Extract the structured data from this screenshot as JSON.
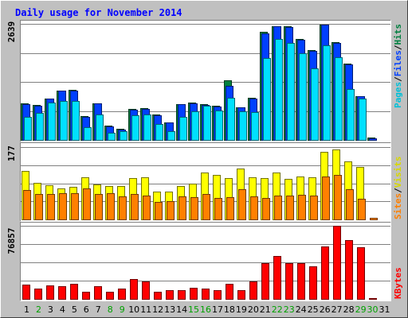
{
  "chart_data": {
    "type": "bar",
    "title": "Daily usage for November 2014",
    "days": [
      "1",
      "2",
      "3",
      "4",
      "5",
      "6",
      "7",
      "8",
      "9",
      "10",
      "11",
      "12",
      "13",
      "14",
      "15",
      "16",
      "17",
      "18",
      "19",
      "20",
      "21",
      "22",
      "23",
      "24",
      "25",
      "26",
      "27",
      "28",
      "29",
      "30",
      "31"
    ],
    "weekend_days": [
      2,
      8,
      9,
      15,
      16,
      22,
      23,
      29,
      30
    ],
    "panels": {
      "top": {
        "max_label": "2639",
        "ymax": 2639,
        "grid": true,
        "series": [
          {
            "name": "Hits",
            "color": "#008040",
            "values": [
              823,
              791,
              946,
              1124,
              1132,
              543,
              838,
              325,
              254,
              707,
              715,
              579,
              405,
              818,
              843,
              812,
              770,
              1356,
              749,
              954,
              2454,
              2592,
              2579,
              2290,
              2041,
              2626,
              2216,
              1732,
              999,
              50,
              0
            ]
          },
          {
            "name": "Files",
            "color": "#0040ff",
            "values": [
              811,
              779,
              934,
              1117,
              1124,
              531,
              826,
              314,
              243,
              695,
              703,
              567,
              393,
              806,
              831,
              800,
              758,
              1221,
              737,
              942,
              2429,
              2580,
              2567,
              2277,
              2029,
              2613,
              2203,
              1719,
              987,
              45,
              0
            ]
          },
          {
            "name": "Pages",
            "color": "#00e0ff",
            "values": [
              522,
              618,
              852,
              887,
              881,
              287,
              583,
              166,
              191,
              561,
              574,
              369,
              204,
              533,
              656,
              778,
              672,
              949,
              659,
              639,
              1855,
              2303,
              2214,
              1968,
              1627,
              2160,
              1873,
              1162,
              932,
              0,
              0
            ]
          }
        ]
      },
      "middle": {
        "max_label": "177",
        "ymax": 177,
        "grid": true,
        "series": [
          {
            "name": "Visits",
            "color": "#ffff00",
            "values": [
              119,
              89,
              84,
              76,
              80,
              103,
              86,
              81,
              81,
              102,
              103,
              69,
              69,
              81,
              87,
              114,
              109,
              101,
              124,
              103,
              102,
              114,
              100,
              105,
              104,
              166,
              171,
              142,
              128,
              0,
              0
            ]
          },
          {
            "name": "Sites",
            "color": "#ff8000",
            "values": [
              72,
              63,
              63,
              64,
              64,
              75,
              63,
              65,
              56,
              62,
              59,
              43,
              45,
              56,
              54,
              62,
              52,
              55,
              73,
              56,
              53,
              58,
              58,
              61,
              58,
              105,
              108,
              73,
              50,
              4,
              0
            ]
          }
        ]
      },
      "bottom": {
        "max_label": "76857",
        "ymax": 76857,
        "grid": true,
        "series": [
          {
            "name": "KBytes",
            "color": "#ff0000",
            "values": [
              14900,
              10500,
              14100,
              13500,
              16200,
              7500,
              13500,
              7500,
              10500,
              21000,
              18000,
              7500,
              9000,
              9000,
              11500,
              11000,
              9000,
              15500,
              9000,
              18000,
              37500,
              45300,
              38000,
              37800,
              34500,
              55000,
              77000,
              62000,
              54000,
              600,
              0
            ]
          }
        ]
      }
    },
    "legends": {
      "top": [
        "Pages",
        "Files",
        "Hits"
      ],
      "middle": [
        "Sites",
        "Visits"
      ],
      "bottom": [
        "KBytes"
      ]
    },
    "colors": {
      "background": "#c0c0c0",
      "plot_bg": "#ffffff",
      "title": "#0000ff",
      "day_label": "#000000",
      "weekend_label": "#00a000",
      "grid": "#808080"
    }
  }
}
